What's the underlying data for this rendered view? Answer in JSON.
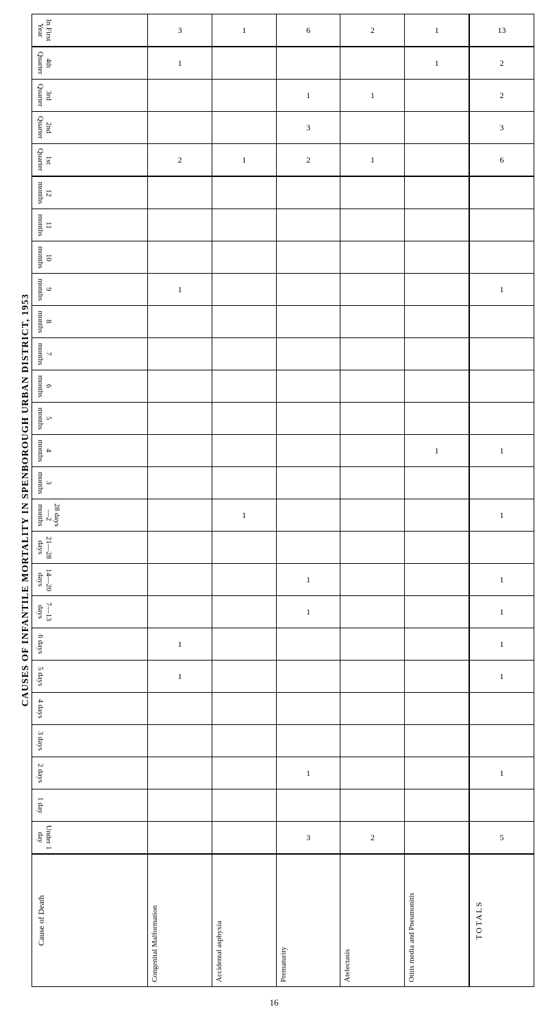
{
  "side_title": "CAUSES OF INFANTILE MORTALITY IN SPENBOROUGH URBAN DISTRICT, 1953",
  "cause_label": "Cause of Death",
  "totals_label": "TOTALS",
  "page_number": "16",
  "columns": [
    "Congenital Malformation",
    "Accidental asphyxia",
    "Prematurity",
    "Atelectasis",
    "Otitis media and Pneumonitis"
  ],
  "rows": [
    {
      "label": "In First Year",
      "cls": "heavy-bottom",
      "values": [
        "3",
        "1",
        "6",
        "2",
        "1"
      ],
      "total": "13"
    },
    {
      "label": "4th Quarter",
      "cls": "",
      "values": [
        "1",
        "",
        "",
        "",
        "1"
      ],
      "total": "2"
    },
    {
      "label": "3rd Quarter",
      "cls": "",
      "values": [
        "",
        "",
        "1",
        "1",
        ""
      ],
      "total": "2"
    },
    {
      "label": "2nd Quarter",
      "cls": "",
      "values": [
        "",
        "",
        "3",
        "",
        ""
      ],
      "total": "3"
    },
    {
      "label": "1st Quarter",
      "cls": "heavy-bottom",
      "values": [
        "2",
        "1",
        "2",
        "1",
        ""
      ],
      "total": "6"
    },
    {
      "label": "12 months",
      "cls": "",
      "values": [
        "",
        "",
        "",
        "",
        ""
      ],
      "total": ""
    },
    {
      "label": "11 months",
      "cls": "",
      "values": [
        "",
        "",
        "",
        "",
        ""
      ],
      "total": ""
    },
    {
      "label": "10 months",
      "cls": "",
      "values": [
        "",
        "",
        "",
        "",
        ""
      ],
      "total": ""
    },
    {
      "label": "9 months",
      "cls": "",
      "values": [
        "1",
        "",
        "",
        "",
        ""
      ],
      "total": "1"
    },
    {
      "label": "8 months",
      "cls": "",
      "values": [
        "",
        "",
        "",
        "",
        ""
      ],
      "total": ""
    },
    {
      "label": "7 months",
      "cls": "",
      "values": [
        "",
        "",
        "",
        "",
        ""
      ],
      "total": ""
    },
    {
      "label": "6 months",
      "cls": "",
      "values": [
        "",
        "",
        "",
        "",
        ""
      ],
      "total": ""
    },
    {
      "label": "5 months",
      "cls": "",
      "values": [
        "",
        "",
        "",
        "",
        ""
      ],
      "total": ""
    },
    {
      "label": "4 months",
      "cls": "",
      "values": [
        "",
        "",
        "",
        "",
        "1"
      ],
      "total": "1"
    },
    {
      "label": "3 months",
      "cls": "",
      "values": [
        "",
        "",
        "",
        "",
        ""
      ],
      "total": ""
    },
    {
      "label": "28 days—2 months",
      "cls": "",
      "values": [
        "",
        "1",
        "",
        "",
        ""
      ],
      "total": "1"
    },
    {
      "label": "21—28 days",
      "cls": "",
      "values": [
        "",
        "",
        "",
        "",
        ""
      ],
      "total": ""
    },
    {
      "label": "14—20 days",
      "cls": "",
      "values": [
        "",
        "",
        "1",
        "",
        ""
      ],
      "total": "1"
    },
    {
      "label": "7—13 days",
      "cls": "",
      "values": [
        "",
        "",
        "1",
        "",
        ""
      ],
      "total": "1"
    },
    {
      "label": "6 days",
      "cls": "",
      "values": [
        "1",
        "",
        "",
        "",
        ""
      ],
      "total": "1"
    },
    {
      "label": "5 days",
      "cls": "",
      "values": [
        "1",
        "",
        "",
        "",
        ""
      ],
      "total": "1"
    },
    {
      "label": "4 days",
      "cls": "",
      "values": [
        "",
        "",
        "",
        "",
        ""
      ],
      "total": ""
    },
    {
      "label": "3 days",
      "cls": "",
      "values": [
        "",
        "",
        "",
        "",
        ""
      ],
      "total": ""
    },
    {
      "label": "2 days",
      "cls": "",
      "values": [
        "",
        "",
        "1",
        "",
        ""
      ],
      "total": "1"
    },
    {
      "label": "1 day",
      "cls": "",
      "values": [
        "",
        "",
        "",
        "",
        ""
      ],
      "total": ""
    },
    {
      "label": "Under 1 day",
      "cls": "heavy-bottom",
      "values": [
        "",
        "",
        "3",
        "2",
        ""
      ],
      "total": "5"
    }
  ]
}
